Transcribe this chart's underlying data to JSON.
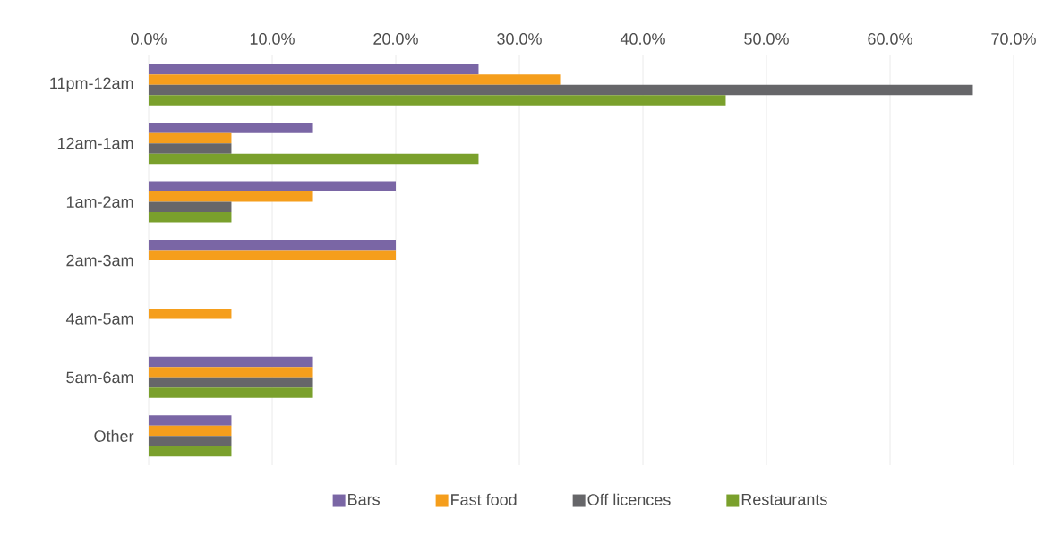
{
  "chart_data": {
    "type": "bar",
    "orientation": "horizontal",
    "categories": [
      "11pm-12am",
      "12am-1am",
      "1am-2am",
      "2am-3am",
      "4am-5am",
      "5am-6am",
      "Other"
    ],
    "series": [
      {
        "name": "Bars",
        "color": "#7a66a5",
        "values": [
          26.7,
          13.3,
          20.0,
          20.0,
          null,
          13.3,
          6.7
        ]
      },
      {
        "name": "Fast food",
        "color": "#f59e1c",
        "values": [
          33.3,
          6.7,
          13.3,
          20.0,
          6.7,
          13.3,
          6.7
        ]
      },
      {
        "name": "Off licences",
        "color": "#666669",
        "values": [
          66.7,
          6.7,
          6.7,
          null,
          null,
          13.3,
          6.7
        ]
      },
      {
        "name": "Restaurants",
        "color": "#7aa02c",
        "values": [
          46.7,
          26.7,
          6.7,
          null,
          null,
          13.3,
          6.7
        ]
      }
    ],
    "xlim": [
      0,
      70
    ],
    "xticks": [
      {
        "value": 0,
        "label": "0.0%"
      },
      {
        "value": 10,
        "label": "10.0%"
      },
      {
        "value": 20,
        "label": "20.0%"
      },
      {
        "value": 30,
        "label": "30.0%"
      },
      {
        "value": 40,
        "label": "40.0%"
      },
      {
        "value": 50,
        "label": "50.0%"
      },
      {
        "value": 60,
        "label": "60.0%"
      },
      {
        "value": 70,
        "label": "70.0%"
      }
    ],
    "grid": "x",
    "legend": "bottom"
  }
}
